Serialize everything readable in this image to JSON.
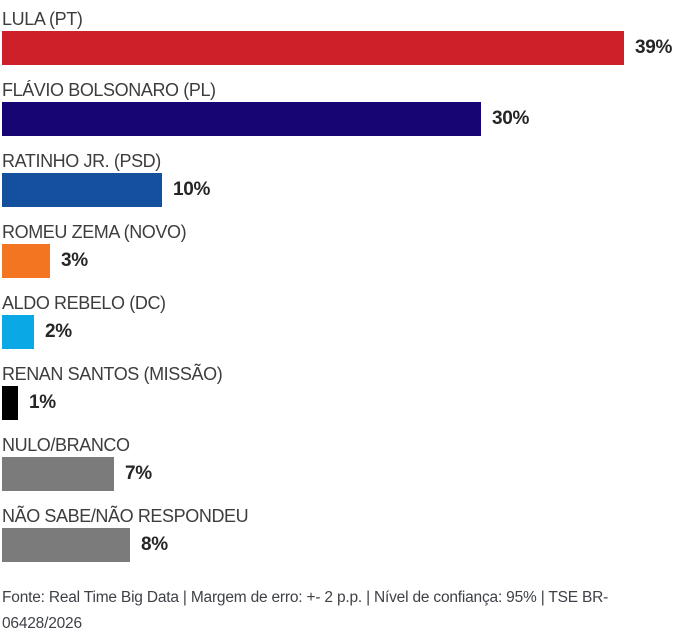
{
  "chart_data": {
    "type": "bar",
    "orientation": "horizontal",
    "title": "",
    "xlabel": "",
    "ylabel": "",
    "xlim": [
      0,
      39
    ],
    "grid": false,
    "legend": "none",
    "categories": [
      "LULA (PT)",
      "FLÁVIO BOLSONARO (PL)",
      "RATINHO JR. (PSD)",
      "ROMEU ZEMA (NOVO)",
      "ALDO REBELO (DC)",
      "RENAN SANTOS (MISSÃO)",
      "NULO/BRANCO",
      "NÃO SABE/NÃO RESPONDEU"
    ],
    "values": [
      39,
      30,
      10,
      3,
      2,
      1,
      7,
      8
    ],
    "value_labels": [
      "39%",
      "30%",
      "10%",
      "3%",
      "2%",
      "1%",
      "7%",
      "8%"
    ],
    "bar_colors": [
      "#ce2029",
      "#160572",
      "#15509e",
      "#f37421",
      "#0aa9e5",
      "#000000",
      "#7b7b7b",
      "#7b7b7b"
    ]
  },
  "colors": {
    "label_text": "#3d3d3d",
    "value_text": "#262626",
    "footer_text": "#3e4147",
    "background": "#ffffff"
  },
  "footer": {
    "text": "Fonte: Real Time Big Data | Margem de erro: +- 2 p.p. | Nível de confiança: 95% | TSE BR-06428/2026"
  }
}
